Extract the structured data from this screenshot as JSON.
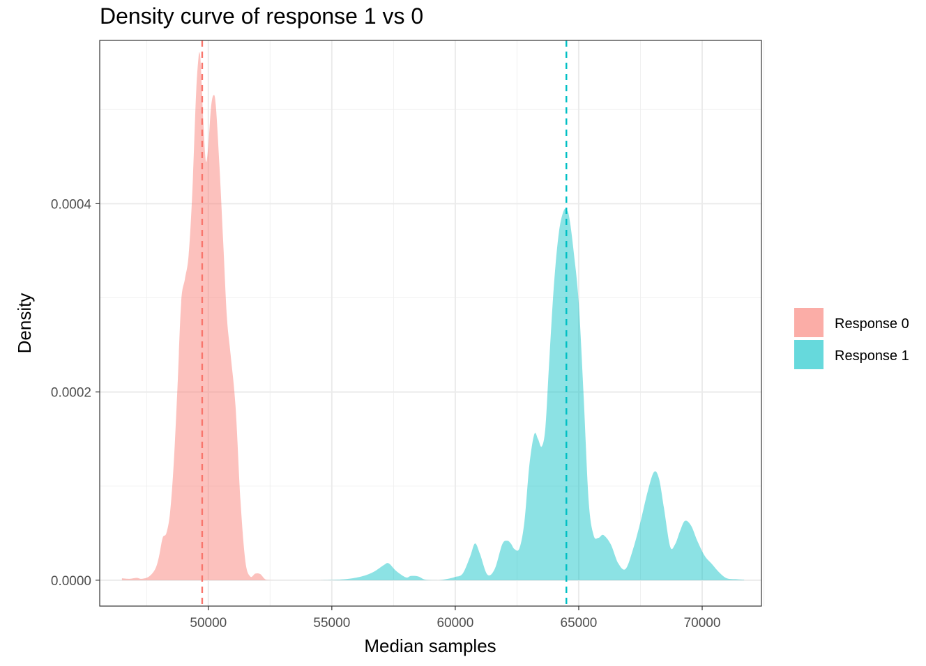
{
  "chart_data": {
    "type": "area",
    "title": "Density curve of response 1 vs 0",
    "xlabel": "Median samples",
    "ylabel": "Density",
    "xlim": [
      45600,
      72400
    ],
    "ylim": [
      -2.75e-05,
      0.0005735
    ],
    "x_ticks": [
      50000,
      55000,
      60000,
      65000,
      70000
    ],
    "x_tick_labels": [
      "50000",
      "55000",
      "60000",
      "65000",
      "70000"
    ],
    "y_ticks": [
      0.0,
      0.0002,
      0.0004
    ],
    "y_tick_labels": [
      "0.0000",
      "0.0002",
      "0.0004"
    ],
    "x_minor_ticks": [
      47500,
      52500,
      57500,
      62500,
      67500,
      72500
    ],
    "y_minor_ticks": [
      0.0001,
      0.0003,
      0.0005
    ],
    "grid": true,
    "legend_position": "right",
    "series": [
      {
        "name": "Response 0",
        "color": "#F8766D",
        "mean_line": 49750,
        "x": [
          46500,
          46800,
          47100,
          47300,
          47600,
          47850,
          48000,
          48150,
          48300,
          48450,
          48600,
          48750,
          48900,
          49050,
          49200,
          49350,
          49500,
          49600,
          49650,
          49700,
          49800,
          49900,
          50000,
          50100,
          50200,
          50300,
          50450,
          50600,
          50750,
          50900,
          51100,
          51300,
          51500,
          51700,
          51900,
          52100,
          52300,
          52500,
          52800
        ],
        "y": [
          2e-06,
          1.5e-06,
          2.5e-06,
          1.5e-06,
          4e-06,
          1.2e-05,
          2.5e-05,
          4.5e-05,
          5e-05,
          7.2e-05,
          0.000125,
          0.000205,
          0.000295,
          0.00032,
          0.000345,
          0.000412,
          0.000515,
          0.000555,
          0.00056,
          0.000545,
          0.000485,
          0.000445,
          0.000462,
          0.0005,
          0.000515,
          0.000505,
          0.00044,
          0.00036,
          0.00028,
          0.00024,
          0.000185,
          8.5e-05,
          2e-05,
          4e-06,
          7e-06,
          6.5e-06,
          1e-06,
          2e-07,
          0.0
        ]
      },
      {
        "name": "Response 1",
        "color": "#00BFC4",
        "mean_line": 64500,
        "x": [
          54500,
          55500,
          56200,
          56700,
          57100,
          57300,
          57600,
          58000,
          58200,
          58500,
          58800,
          59300,
          59700,
          60000,
          60300,
          60600,
          60800,
          61000,
          61300,
          61600,
          61900,
          62100,
          62250,
          62400,
          62600,
          62800,
          63000,
          63200,
          63350,
          63500,
          63650,
          63800,
          64000,
          64200,
          64400,
          64550,
          64650,
          64800,
          65000,
          65200,
          65400,
          65600,
          65800,
          66000,
          66300,
          66600,
          66900,
          67200,
          67500,
          67800,
          68050,
          68250,
          68450,
          68700,
          68900,
          69100,
          69300,
          69550,
          69800,
          70100,
          70400,
          70700,
          71000,
          71400,
          71700
        ],
        "y": [
          0.0,
          1e-06,
          4e-06,
          9e-06,
          1.6e-05,
          1.8e-05,
          1e-05,
          3e-06,
          4.5e-06,
          4e-06,
          5e-07,
          0.0,
          1.5e-06,
          3.5e-06,
          7e-06,
          2.5e-05,
          3.9e-05,
          2.8e-05,
          6e-06,
          1.2e-05,
          3.8e-05,
          4.2e-05,
          3.9e-05,
          3.3e-05,
          3.4e-05,
          6.2e-05,
          0.000122,
          0.000155,
          0.00015,
          0.000142,
          0.000162,
          0.00023,
          0.000315,
          0.00037,
          0.000393,
          0.000392,
          0.00038,
          0.000348,
          0.000295,
          0.000195,
          8.5e-05,
          4.8e-05,
          4.5e-05,
          4.8e-05,
          3.8e-05,
          1.8e-05,
          1.2e-05,
          3.3e-05,
          6.2e-05,
          9.5e-05,
          0.000115,
          0.000108,
          7.7e-05,
          3.6e-05,
          3.8e-05,
          5.2e-05,
          6.3e-05,
          5.8e-05,
          4.2e-05,
          2.6e-05,
          1.7e-05,
          8e-06,
          2e-06,
          1e-06,
          5e-07
        ]
      }
    ]
  }
}
